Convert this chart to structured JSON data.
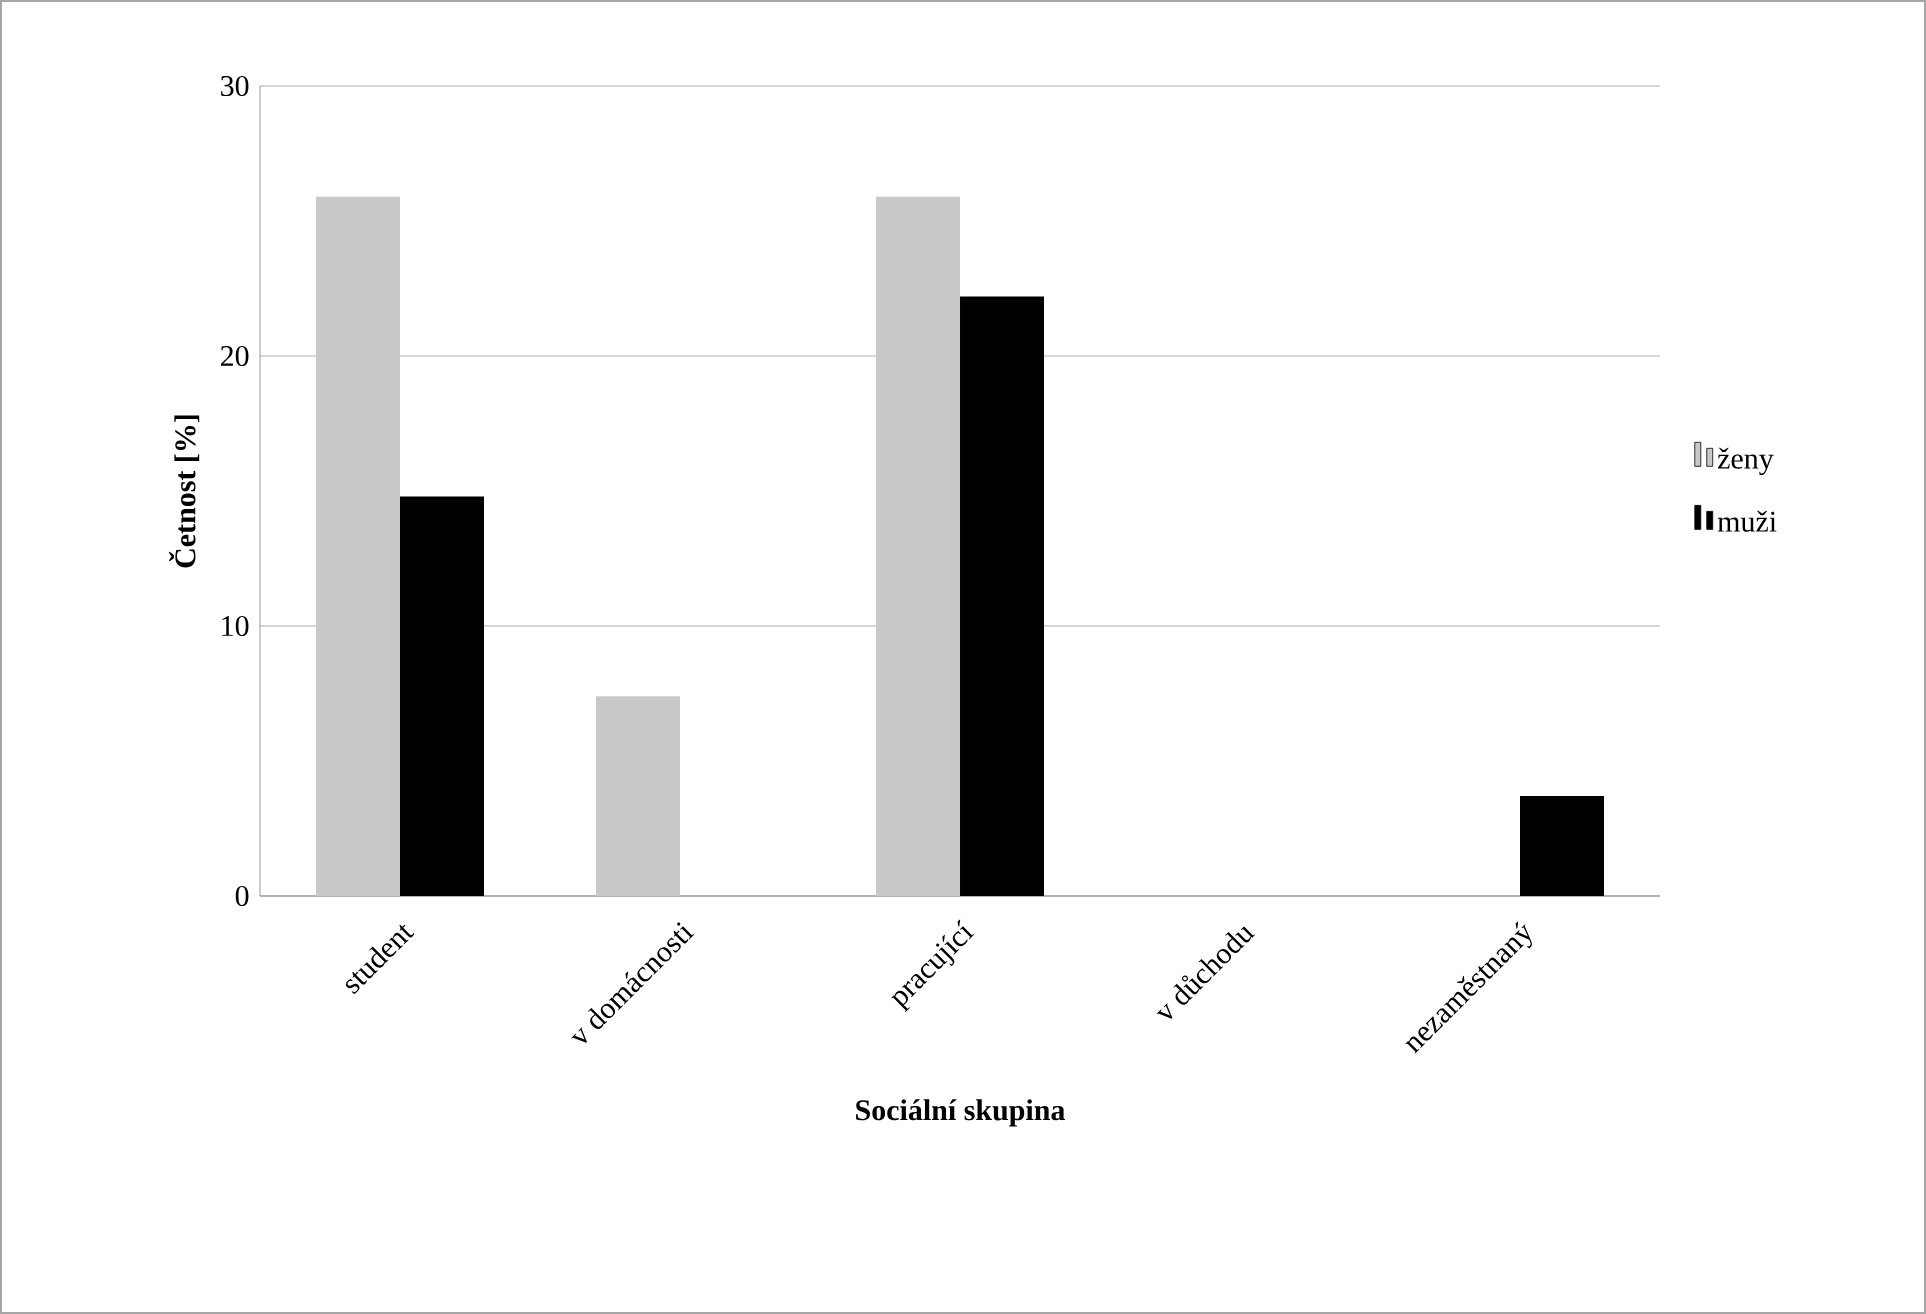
{
  "chart_data": {
    "type": "bar",
    "xlabel": "Sociální skupina",
    "ylabel": "Četnost [%]",
    "categories": [
      "student",
      "v domácnosti",
      "pracující",
      "v důchodu",
      "nezaměstnaný"
    ],
    "series": [
      {
        "name": "ženy",
        "color": "#c8c8c8",
        "values": [
          25.9,
          7.4,
          25.9,
          0,
          0
        ]
      },
      {
        "name": "muži",
        "color": "#000000",
        "values": [
          14.8,
          0,
          22.2,
          0,
          3.7
        ]
      }
    ],
    "ylim": [
      0,
      30
    ],
    "yticks": [
      0,
      10,
      20,
      30
    ],
    "grid": "y",
    "legend": "right"
  }
}
